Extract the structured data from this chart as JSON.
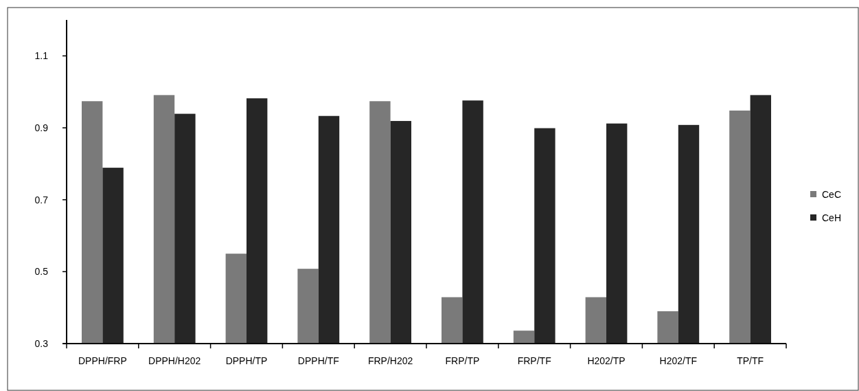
{
  "chart_data": {
    "type": "bar",
    "categories": [
      "DPPH/FRP",
      "DPPH/H202",
      "DPPH/TP",
      "DPPH/TF",
      "FRP/H202",
      "FRP/TP",
      "FRP/TF",
      "H202/TP",
      "H202/TF",
      "TP/TF"
    ],
    "series": [
      {
        "name": "CeC",
        "color": "#7a7a7a",
        "values": [
          0.974,
          0.991,
          0.55,
          0.508,
          0.974,
          0.429,
          0.336,
          0.429,
          0.39,
          0.948
        ]
      },
      {
        "name": "CeH",
        "color": "#262626",
        "values": [
          0.789,
          0.939,
          0.982,
          0.933,
          0.919,
          0.976,
          0.899,
          0.912,
          0.908,
          0.991
        ]
      }
    ],
    "ylim": [
      0.3,
      1.2
    ],
    "yticks": [
      0.3,
      0.5,
      0.7,
      0.9,
      1.1
    ],
    "legend": "right",
    "grid": false
  }
}
